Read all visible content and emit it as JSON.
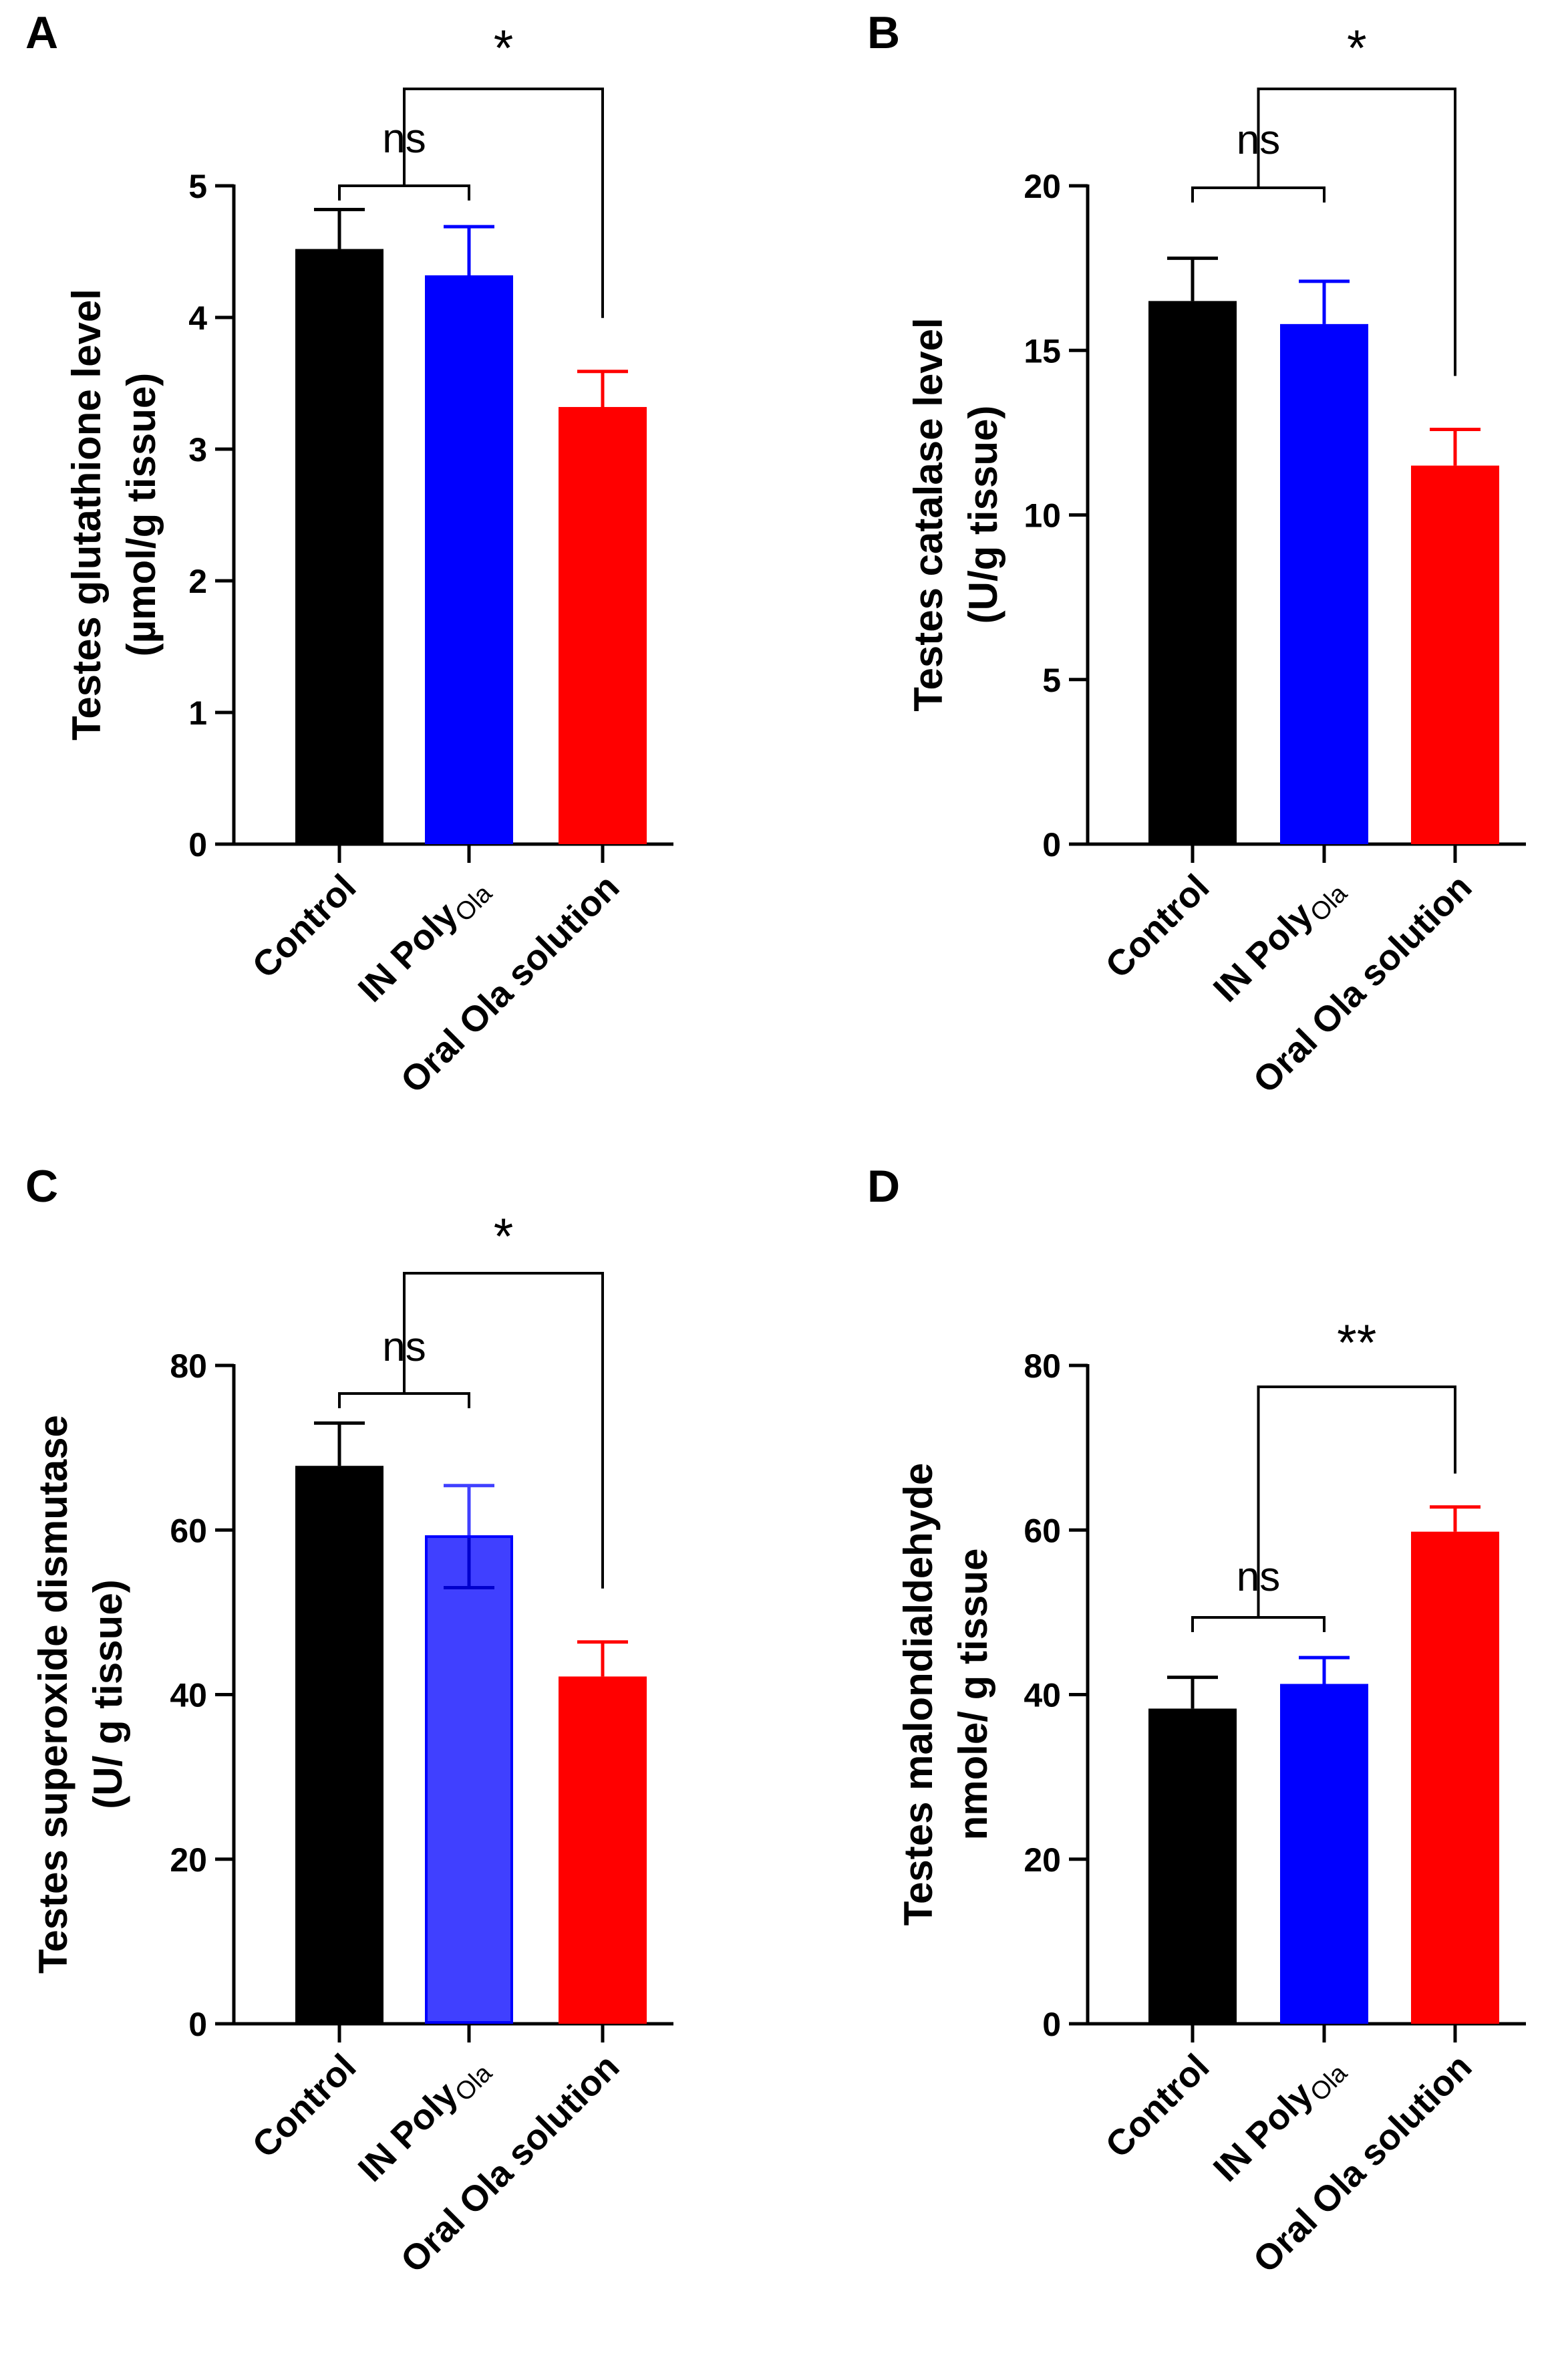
{
  "figure": {
    "group_colors": {
      "Control": "#000000",
      "IN PolyOla": "#0000ff",
      "Oral Ola solution": "#ff0000"
    }
  },
  "chart_data": [
    {
      "panel": "A",
      "type": "bar",
      "ylabel_lines": [
        "Testes glutathione level",
        "(µmol/g tissue)"
      ],
      "categories": [
        {
          "main": "Control",
          "sub": ""
        },
        {
          "main": "IN Poly",
          "sub": "Ola"
        },
        {
          "main": "Oral Ola solution",
          "sub": ""
        }
      ],
      "values": [
        4.52,
        4.32,
        3.32
      ],
      "errors": [
        0.3,
        0.37,
        0.27
      ],
      "colors": [
        "#000000",
        "#0000ff",
        "#ff0000"
      ],
      "ylim": [
        0,
        5
      ],
      "yticks": [
        0,
        1,
        2,
        3,
        4,
        5
      ],
      "significance": [
        {
          "label": "ns",
          "from": 0,
          "to": 1
        },
        {
          "label": "*",
          "from": "ns",
          "to": 2
        }
      ]
    },
    {
      "panel": "B",
      "type": "bar",
      "ylabel_lines": [
        "Testes catalase level",
        "(U/g tissue)"
      ],
      "categories": [
        {
          "main": "Control",
          "sub": ""
        },
        {
          "main": "IN Poly",
          "sub": "Ola"
        },
        {
          "main": "Oral Ola solution",
          "sub": ""
        }
      ],
      "values": [
        16.5,
        15.8,
        11.5
      ],
      "errors": [
        1.3,
        1.3,
        1.1
      ],
      "colors": [
        "#000000",
        "#0000ff",
        "#ff0000"
      ],
      "ylim": [
        0,
        20
      ],
      "yticks": [
        0,
        5,
        10,
        15,
        20
      ],
      "significance": [
        {
          "label": "ns",
          "from": 0,
          "to": 1
        },
        {
          "label": "*",
          "from": "ns",
          "to": 2
        }
      ]
    },
    {
      "panel": "C",
      "type": "bar",
      "ylabel_lines": [
        "Testes superoxide dismutase",
        "(U/ g tissue)"
      ],
      "categories": [
        {
          "main": "Control",
          "sub": ""
        },
        {
          "main": "IN Poly",
          "sub": "Ola"
        },
        {
          "main": "Oral Ola solution",
          "sub": ""
        }
      ],
      "values": [
        67.8,
        59.2,
        42.2
      ],
      "errors": [
        5.2,
        6.2,
        4.2
      ],
      "colors": [
        "#000000",
        "#4040ff",
        "#ff0000"
      ],
      "ylim": [
        0,
        80
      ],
      "yticks": [
        0,
        20,
        40,
        60,
        80
      ],
      "significance": [
        {
          "label": "ns",
          "from": 0,
          "to": 1
        },
        {
          "label": "*",
          "from": "ns",
          "to": 2
        }
      ]
    },
    {
      "panel": "D",
      "type": "bar",
      "ylabel_lines": [
        "Testes malondialdehyde",
        "nmole/ g tissue"
      ],
      "categories": [
        {
          "main": "Control",
          "sub": ""
        },
        {
          "main": "IN Poly",
          "sub": "Ola"
        },
        {
          "main": "Oral Ola solution",
          "sub": ""
        }
      ],
      "values": [
        38.3,
        41.3,
        59.8
      ],
      "errors": [
        3.8,
        3.2,
        3.0
      ],
      "colors": [
        "#000000",
        "#0000ff",
        "#ff0000"
      ],
      "ylim": [
        0,
        80
      ],
      "yticks": [
        0,
        20,
        40,
        60,
        80
      ],
      "significance": [
        {
          "label": "ns",
          "from": 0,
          "to": 1
        },
        {
          "label": "**",
          "from": "ns",
          "to": 2
        }
      ]
    }
  ]
}
